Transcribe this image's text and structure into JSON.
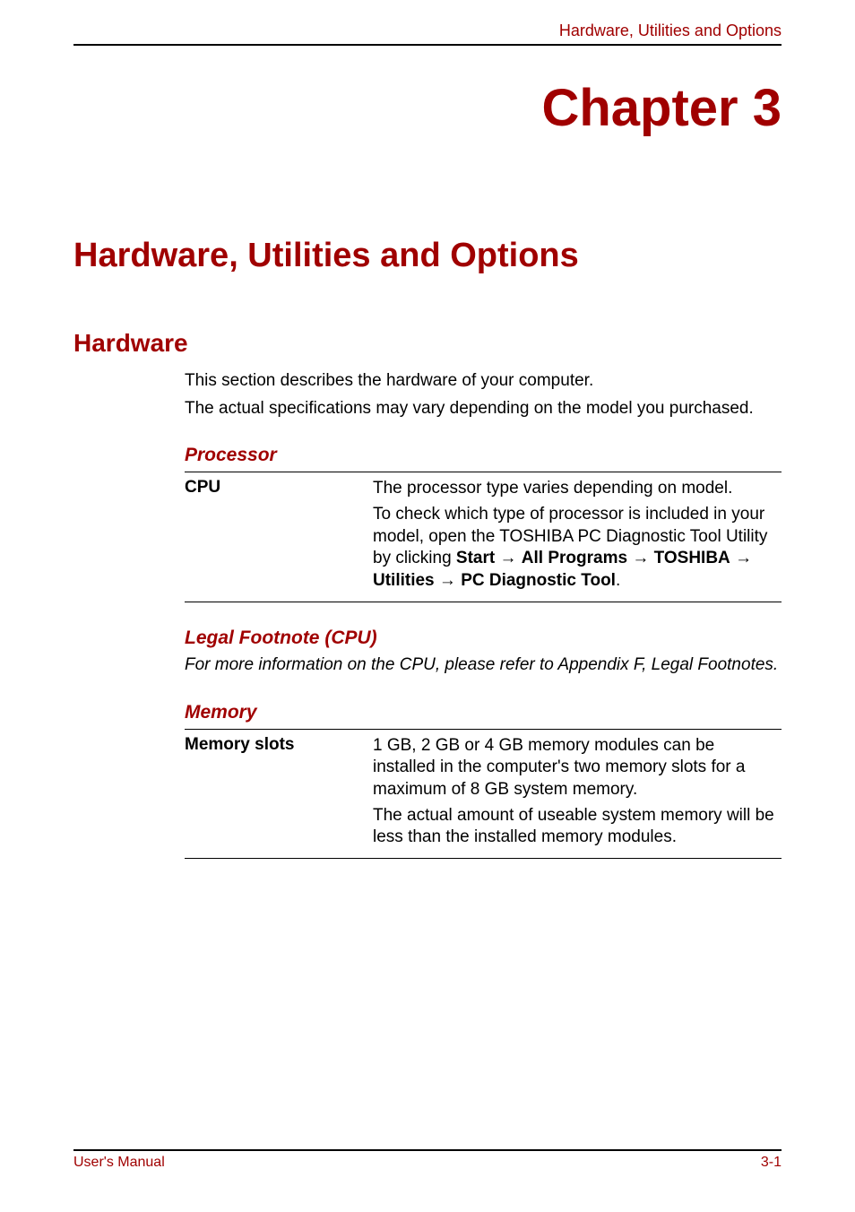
{
  "colors": {
    "accent": "#a00000",
    "text": "#000000",
    "background": "#ffffff",
    "rule": "#000000"
  },
  "header": {
    "running_title": "Hardware, Utilities and Options"
  },
  "chapter": {
    "number_label": "Chapter 3",
    "title": "Hardware, Utilities and Options"
  },
  "section_hardware": {
    "title": "Hardware",
    "intro_1": "This section describes the hardware of your computer.",
    "intro_2": "The actual specifications may vary depending on the model you purchased."
  },
  "processor": {
    "title": "Processor",
    "row_label": "CPU",
    "desc_1": "The processor type varies depending on model.",
    "desc_2_pre": "To check which type of processor is included in your model, open the TOSHIBA PC Diagnostic Tool Utility by clicking ",
    "path_start": "Start",
    "arrow": "→",
    "path_programs": "All Programs",
    "path_toshiba": "TOSHIBA",
    "path_utilities": "Utilities",
    "path_tool": "PC Diagnostic Tool",
    "period": "."
  },
  "legal_cpu": {
    "title": "Legal Footnote (CPU)",
    "text": "For more information on the CPU, please refer to Appendix F, Legal Footnotes."
  },
  "memory": {
    "title": "Memory",
    "row_label": "Memory slots",
    "desc_1": "1 GB, 2 GB or 4 GB memory modules can be installed in the computer's two memory slots for a maximum of 8 GB system memory.",
    "desc_2": "The actual amount of useable system memory will be less than the installed memory modules."
  },
  "footer": {
    "left": "User's Manual",
    "right": "3-1"
  }
}
